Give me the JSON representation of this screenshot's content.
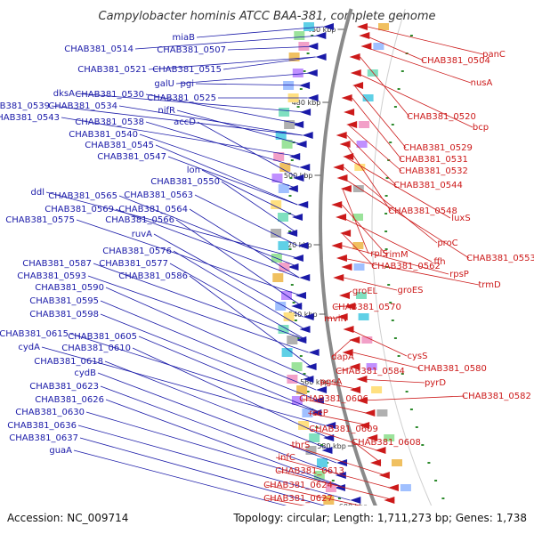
{
  "title": "Campylobacter hominis ATCC BAA-381, complete genome",
  "footer": {
    "accession": "Accession: NC_009714",
    "info": "Topology: circular; Length: 1,711,273 bp; Genes: 1,738"
  },
  "kbp_labels": [
    "460 kbp",
    "480 kbp",
    "500 kbp",
    "520 kbp",
    "540 kbp",
    "560 kbp",
    "580 kbp",
    "600 kbp"
  ],
  "left_labels": [
    "miaB",
    "CHAB381_0514",
    "CHAB381_0507",
    "CHAB381_0521",
    "CHAB381_0515",
    "galU",
    "pgi",
    "CHAB381_0525",
    "dksA",
    "CHAB381_0530",
    "CHAB381_0539",
    "CHAB381_0534",
    "nifR",
    "CHAB381_0543",
    "CHAB381_0538",
    "accD",
    "CHAB381_0540",
    "CHAB381_0545",
    "CHAB381_0547",
    "lon",
    "CHAB381_0550",
    "CHAB381_0563",
    "ddl",
    "CHAB381_0565",
    "CHAB381_0569",
    "CHAB381_0564",
    "CHAB381_0575",
    "CHAB381_0566",
    "ruvA",
    "CHAB381_0576",
    "CHAB381_0587",
    "CHAB381_0577",
    "CHAB381_0593",
    "CHAB381_0586",
    "CHAB381_0590",
    "CHAB381_0595",
    "CHAB381_0598",
    "CHAB381_0615",
    "CHAB381_0605",
    "cydA",
    "CHAB381_0610",
    "CHAB381_0618",
    "cydB",
    "CHAB381_0623",
    "CHAB381_0626",
    "CHAB381_0630",
    "CHAB381_0636",
    "CHAB381_0637",
    "guaA"
  ],
  "right_labels": [
    "panC",
    "CHAB381_0504",
    "nusA",
    "CHAB381_0520",
    "bcp",
    "CHAB381_0529",
    "CHAB381_0531",
    "CHAB381_0532",
    "CHAB381_0544",
    "CHAB381_0548",
    "luxS",
    "proC",
    "CHAB381_0553",
    "rplS",
    "rimM",
    "ffh",
    "CHAB381_0562",
    "rpsP",
    "trmD",
    "groES",
    "groEL",
    "CHAB381_0570",
    "mviN",
    "cysS",
    "dapA",
    "CHAB381_0580",
    "CHAB381_0584",
    "pyrD",
    "pgsA",
    "CHAB381_0582",
    "CHAB381_0606",
    "rseP",
    "CHAB381_0609",
    "CHAB381_0608",
    "thrS",
    "infC",
    "CHAB381_0613",
    "CHAB381_0624",
    "CHAB381_0627"
  ],
  "colors": {
    "left_genes": "#1a1aa8",
    "right_genes": "#cc1a1a",
    "backbone": "#8a8a8a",
    "tick": "#2e8b2e"
  }
}
